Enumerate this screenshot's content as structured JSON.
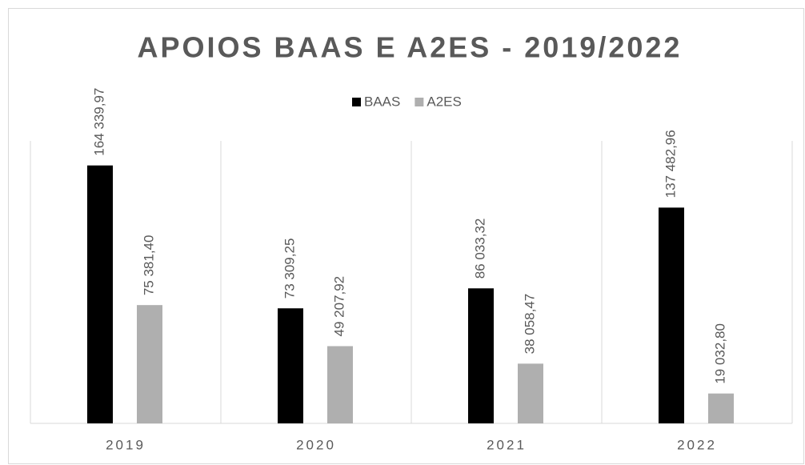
{
  "chart_data": {
    "type": "bar",
    "title": "APOIOS BAAS E A2ES - 2019/2022",
    "categories": [
      "2019",
      "2020",
      "2021",
      "2022"
    ],
    "series": [
      {
        "name": "BAAS",
        "color": "#000000",
        "values": [
          164339.97,
          73309.25,
          86033.32,
          137482.96
        ],
        "value_labels": [
          "164 339,97",
          "73 309,25",
          "86 033,32",
          "137 482,96"
        ]
      },
      {
        "name": "A2ES",
        "color": "#afafaf",
        "values": [
          75381.4,
          49207.92,
          38058.47,
          19032.8
        ],
        "value_labels": [
          "75 381,40",
          "49 207,92",
          "38 058,47",
          "19 032,80"
        ]
      }
    ],
    "ylim": [
      0,
      180000
    ],
    "legend": "top"
  }
}
